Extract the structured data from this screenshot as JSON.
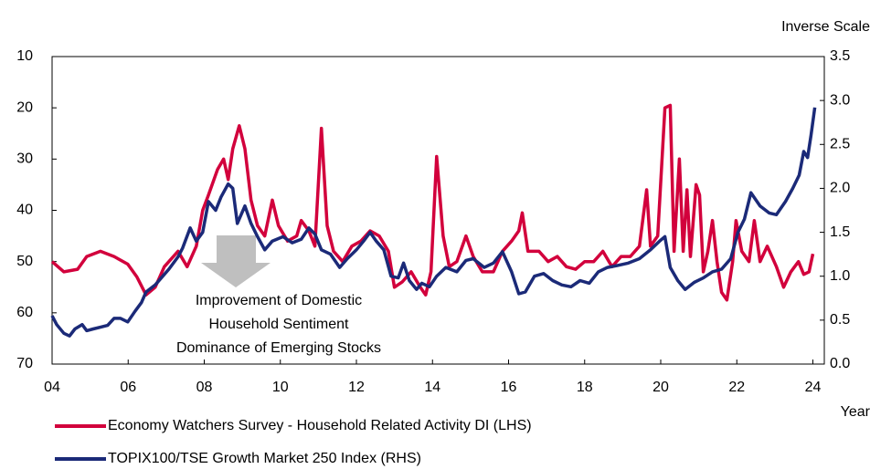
{
  "chart_data": {
    "type": "line",
    "y_axis_note": "Inverse Scale",
    "x_axis_label": "Year",
    "annotations": [
      "Improvement of Domestic",
      "Household Sentiment",
      "Dominance of Emerging Stocks"
    ],
    "xlim": [
      2004,
      2024.3
    ],
    "xticks": [
      {
        "value": 2004,
        "label": "04"
      },
      {
        "value": 2006,
        "label": "06"
      },
      {
        "value": 2008,
        "label": "08"
      },
      {
        "value": 2010,
        "label": "10"
      },
      {
        "value": 2012,
        "label": "12"
      },
      {
        "value": 2014,
        "label": "14"
      },
      {
        "value": 2016,
        "label": "16"
      },
      {
        "value": 2018,
        "label": "18"
      },
      {
        "value": 2020,
        "label": "20"
      },
      {
        "value": 2022,
        "label": "22"
      },
      {
        "value": 2024,
        "label": "24"
      }
    ],
    "ylim": [
      10,
      70
    ],
    "y_inverted": true,
    "yticks": [
      10,
      20,
      30,
      40,
      50,
      60,
      70
    ],
    "y2lim": [
      0,
      3.5
    ],
    "y2ticks": [
      {
        "value": 0,
        "label": "0.0"
      },
      0.5,
      {
        "value": 1,
        "label": "1.0"
      },
      1.5,
      {
        "value": 2,
        "label": "2.0"
      },
      2.5,
      {
        "value": 3,
        "label": "3.0"
      },
      3.5
    ],
    "grid": false,
    "legend": "bottom",
    "series": [
      {
        "name": "Economy Watchers Survey - Household Related Activity DI (LHS)",
        "color": "#d2003c",
        "axis": "y",
        "x": [
          2004.0,
          2004.31,
          2004.67,
          2004.91,
          2005.27,
          2005.63,
          2005.99,
          2006.23,
          2006.47,
          2006.71,
          2006.95,
          2007.31,
          2007.55,
          2007.79,
          2007.96,
          2008.11,
          2008.35,
          2008.51,
          2008.63,
          2008.75,
          2008.92,
          2009.07,
          2009.23,
          2009.4,
          2009.59,
          2009.79,
          2009.95,
          2010.19,
          2010.43,
          2010.55,
          2010.75,
          2010.91,
          2011.08,
          2011.23,
          2011.4,
          2011.64,
          2011.88,
          2012.12,
          2012.36,
          2012.6,
          2012.84,
          2013.0,
          2013.2,
          2013.44,
          2013.68,
          2013.82,
          2013.96,
          2014.11,
          2014.28,
          2014.44,
          2014.64,
          2014.88,
          2015.07,
          2015.31,
          2015.6,
          2015.84,
          2016.08,
          2016.27,
          2016.36,
          2016.51,
          2016.8,
          2017.04,
          2017.28,
          2017.52,
          2017.76,
          2018.0,
          2018.24,
          2018.48,
          2018.72,
          2018.96,
          2019.2,
          2019.44,
          2019.63,
          2019.73,
          2019.92,
          2020.11,
          2020.25,
          2020.35,
          2020.49,
          2020.59,
          2020.69,
          2020.78,
          2020.93,
          2021.02,
          2021.12,
          2021.24,
          2021.36,
          2021.48,
          2021.6,
          2021.74,
          2021.89,
          2021.98,
          2022.13,
          2022.32,
          2022.46,
          2022.61,
          2022.8,
          2023.04,
          2023.23,
          2023.42,
          2023.62,
          2023.76,
          2023.9,
          2024.0
        ],
        "values": [
          50,
          52,
          51.5,
          49,
          48,
          49,
          50.5,
          53,
          56.5,
          55,
          51,
          48,
          51,
          47,
          40,
          37,
          32,
          30,
          34,
          28,
          23.5,
          28,
          38,
          43,
          45,
          38,
          43,
          46,
          45,
          42,
          44,
          47,
          24,
          43,
          48,
          50,
          47,
          46,
          44,
          45,
          48,
          55,
          54,
          52,
          55,
          56.5,
          52,
          29.5,
          45,
          51,
          50,
          45,
          49,
          52,
          52,
          48,
          46,
          44,
          40.5,
          48,
          48,
          50,
          49,
          51,
          51.5,
          50,
          50,
          48,
          51,
          49,
          49,
          47,
          36,
          47,
          45,
          20,
          19.5,
          48,
          30,
          48,
          36,
          49,
          35,
          37,
          52,
          48,
          42,
          50,
          56,
          57.5,
          50,
          42,
          48,
          50,
          42,
          50,
          47,
          51,
          55,
          52,
          50,
          52.5,
          52,
          48.5
        ]
      },
      {
        "name": "TOPIX100/TSE Growth Market 250 Index (RHS)",
        "color": "#1b2a78",
        "axis": "y2",
        "x": [
          2004.0,
          2004.12,
          2004.31,
          2004.46,
          2004.6,
          2004.79,
          2004.91,
          2005.08,
          2005.27,
          2005.46,
          2005.63,
          2005.8,
          2005.99,
          2006.18,
          2006.35,
          2006.47,
          2006.71,
          2006.91,
          2007.07,
          2007.31,
          2007.43,
          2007.63,
          2007.79,
          2007.96,
          2008.11,
          2008.3,
          2008.44,
          2008.63,
          2008.75,
          2008.87,
          2009.07,
          2009.23,
          2009.4,
          2009.59,
          2009.79,
          2010.07,
          2010.31,
          2010.55,
          2010.75,
          2010.91,
          2011.08,
          2011.32,
          2011.56,
          2011.76,
          2012.0,
          2012.19,
          2012.36,
          2012.52,
          2012.72,
          2012.91,
          2013.1,
          2013.24,
          2013.39,
          2013.58,
          2013.72,
          2013.92,
          2014.11,
          2014.35,
          2014.64,
          2014.88,
          2015.07,
          2015.36,
          2015.6,
          2015.84,
          2016.08,
          2016.27,
          2016.44,
          2016.68,
          2016.92,
          2017.16,
          2017.4,
          2017.64,
          2017.88,
          2018.12,
          2018.36,
          2018.6,
          2018.84,
          2019.15,
          2019.44,
          2019.73,
          2019.97,
          2020.11,
          2020.25,
          2020.45,
          2020.64,
          2020.88,
          2021.12,
          2021.36,
          2021.6,
          2021.84,
          2022.03,
          2022.2,
          2022.37,
          2022.61,
          2022.85,
          2023.04,
          2023.28,
          2023.47,
          2023.64,
          2023.76,
          2023.86,
          2023.95,
          2024.05
        ],
        "values": [
          0.55,
          0.45,
          0.35,
          0.32,
          0.4,
          0.45,
          0.38,
          0.4,
          0.42,
          0.44,
          0.52,
          0.52,
          0.48,
          0.6,
          0.7,
          0.82,
          0.9,
          1.0,
          1.08,
          1.22,
          1.32,
          1.55,
          1.4,
          1.5,
          1.85,
          1.75,
          1.9,
          2.05,
          2.0,
          1.6,
          1.8,
          1.6,
          1.45,
          1.3,
          1.4,
          1.45,
          1.38,
          1.42,
          1.55,
          1.48,
          1.3,
          1.25,
          1.1,
          1.2,
          1.3,
          1.4,
          1.5,
          1.4,
          1.3,
          1.0,
          0.98,
          1.15,
          0.95,
          0.85,
          0.92,
          0.88,
          1.0,
          1.1,
          1.05,
          1.18,
          1.2,
          1.1,
          1.15,
          1.28,
          1.05,
          0.8,
          0.82,
          1.0,
          1.03,
          0.95,
          0.9,
          0.88,
          0.95,
          0.92,
          1.05,
          1.1,
          1.12,
          1.15,
          1.2,
          1.3,
          1.4,
          1.45,
          1.1,
          0.95,
          0.85,
          0.93,
          0.98,
          1.05,
          1.08,
          1.2,
          1.5,
          1.65,
          1.95,
          1.8,
          1.72,
          1.7,
          1.85,
          2.0,
          2.15,
          2.42,
          2.35,
          2.6,
          2.92
        ]
      }
    ]
  }
}
